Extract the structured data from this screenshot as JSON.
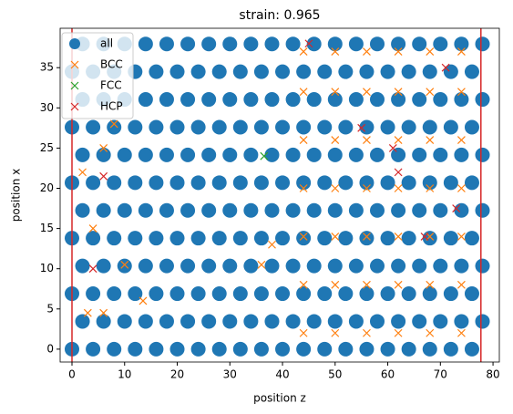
{
  "chart_data": {
    "type": "scatter",
    "title": "strain: 0.965",
    "xlabel": "position z",
    "ylabel": "position x",
    "xlim": [
      -2.25,
      81.2
    ],
    "ylim": [
      -1.6,
      39.9
    ],
    "xticks": [
      0,
      10,
      20,
      30,
      40,
      50,
      60,
      70,
      80
    ],
    "yticks": [
      0,
      5,
      10,
      15,
      20,
      25,
      30,
      35
    ],
    "legend": "upper left",
    "vlines": [
      0,
      77.7
    ],
    "vline_color": "#d62728",
    "series": [
      {
        "name": "all",
        "color": "#1f77b4",
        "marker": "o",
        "x": [
          0,
          4,
          8,
          12,
          16,
          20,
          24,
          28,
          32,
          36,
          40,
          44,
          48,
          52,
          56,
          60,
          64,
          68,
          72,
          76,
          2,
          6,
          10,
          14,
          18,
          22,
          26,
          30,
          34,
          38,
          42,
          46,
          50,
          54,
          58,
          62,
          66,
          70,
          74,
          78,
          0,
          4,
          8,
          12,
          16,
          20,
          24,
          28,
          32,
          36,
          40,
          44,
          48,
          52,
          56,
          60,
          64,
          68,
          72,
          76,
          2,
          6,
          10,
          14,
          18,
          22,
          26,
          30,
          34,
          38,
          42,
          46,
          50,
          54,
          58,
          62,
          66,
          70,
          74,
          78,
          0,
          4,
          8,
          12,
          16,
          20,
          24,
          28,
          32,
          36,
          40,
          44,
          48,
          52,
          56,
          60,
          64,
          68,
          72,
          76,
          2,
          6,
          10,
          14,
          18,
          22,
          26,
          30,
          34,
          38,
          42,
          46,
          50,
          54,
          58,
          62,
          66,
          70,
          74,
          78,
          0,
          4,
          8,
          12,
          16,
          20,
          24,
          28,
          32,
          36,
          40,
          44,
          48,
          52,
          56,
          60,
          64,
          68,
          72,
          76,
          2,
          6,
          10,
          14,
          18,
          22,
          26,
          30,
          34,
          38,
          42,
          46,
          50,
          54,
          58,
          62,
          66,
          70,
          74,
          78,
          0,
          4,
          8,
          12,
          16,
          20,
          24,
          28,
          32,
          36,
          40,
          44,
          48,
          52,
          56,
          60,
          64,
          68,
          72,
          76,
          2,
          6,
          10,
          14,
          18,
          22,
          26,
          30,
          34,
          38,
          42,
          46,
          50,
          54,
          58,
          62,
          66,
          70,
          74,
          78,
          0,
          4,
          8,
          12,
          16,
          20,
          24,
          28,
          32,
          36,
          40,
          44,
          48,
          52,
          56,
          60,
          64,
          68,
          72,
          76,
          2,
          6,
          10,
          14,
          18,
          22,
          26,
          30,
          34,
          38,
          42,
          46,
          50,
          54,
          58,
          62,
          66,
          70,
          74,
          78
        ],
        "values": [
          0,
          0,
          0,
          0,
          0,
          0,
          0,
          0,
          0,
          0,
          0,
          0,
          0,
          0,
          0,
          0,
          0,
          0,
          0,
          0,
          3.45,
          3.45,
          3.45,
          3.45,
          3.45,
          3.45,
          3.45,
          3.45,
          3.45,
          3.45,
          3.45,
          3.45,
          3.45,
          3.45,
          3.45,
          3.45,
          3.45,
          3.45,
          3.45,
          3.45,
          6.9,
          6.9,
          6.9,
          6.9,
          6.9,
          6.9,
          6.9,
          6.9,
          6.9,
          6.9,
          6.9,
          6.9,
          6.9,
          6.9,
          6.9,
          6.9,
          6.9,
          6.9,
          6.9,
          6.9,
          10.35,
          10.35,
          10.35,
          10.35,
          10.35,
          10.35,
          10.35,
          10.35,
          10.35,
          10.35,
          10.35,
          10.35,
          10.35,
          10.35,
          10.35,
          10.35,
          10.35,
          10.35,
          10.35,
          10.35,
          13.8,
          13.8,
          13.8,
          13.8,
          13.8,
          13.8,
          13.8,
          13.8,
          13.8,
          13.8,
          13.8,
          13.8,
          13.8,
          13.8,
          13.8,
          13.8,
          13.8,
          13.8,
          13.8,
          13.8,
          17.25,
          17.25,
          17.25,
          17.25,
          17.25,
          17.25,
          17.25,
          17.25,
          17.25,
          17.25,
          17.25,
          17.25,
          17.25,
          17.25,
          17.25,
          17.25,
          17.25,
          17.25,
          17.25,
          17.25,
          20.7,
          20.7,
          20.7,
          20.7,
          20.7,
          20.7,
          20.7,
          20.7,
          20.7,
          20.7,
          20.7,
          20.7,
          20.7,
          20.7,
          20.7,
          20.7,
          20.7,
          20.7,
          20.7,
          20.7,
          24.15,
          24.15,
          24.15,
          24.15,
          24.15,
          24.15,
          24.15,
          24.15,
          24.15,
          24.15,
          24.15,
          24.15,
          24.15,
          24.15,
          24.15,
          24.15,
          24.15,
          24.15,
          24.15,
          24.15,
          27.6,
          27.6,
          27.6,
          27.6,
          27.6,
          27.6,
          27.6,
          27.6,
          27.6,
          27.6,
          27.6,
          27.6,
          27.6,
          27.6,
          27.6,
          27.6,
          27.6,
          27.6,
          27.6,
          27.6,
          31.05,
          31.05,
          31.05,
          31.05,
          31.05,
          31.05,
          31.05,
          31.05,
          31.05,
          31.05,
          31.05,
          31.05,
          31.05,
          31.05,
          31.05,
          31.05,
          31.05,
          31.05,
          31.05,
          31.05,
          34.5,
          34.5,
          34.5,
          34.5,
          34.5,
          34.5,
          34.5,
          34.5,
          34.5,
          34.5,
          34.5,
          34.5,
          34.5,
          34.5,
          34.5,
          34.5,
          34.5,
          34.5,
          34.5,
          34.5,
          37.95,
          37.95,
          37.95,
          37.95,
          37.95,
          37.95,
          37.95,
          37.95,
          37.95,
          37.95,
          37.95,
          37.95,
          37.95,
          37.95,
          37.95,
          37.95,
          37.95,
          37.95,
          37.95,
          37.95
        ]
      },
      {
        "name": "BCC",
        "color": "#ff7f0e",
        "marker": "x",
        "x": [
          44,
          50,
          56,
          62,
          68,
          74,
          44,
          50,
          56,
          62,
          68,
          74,
          44,
          50,
          56,
          62,
          68,
          74,
          44,
          50,
          56,
          62,
          68,
          74,
          44,
          50,
          56,
          62,
          68,
          74,
          44,
          50,
          56,
          62,
          68,
          74,
          44,
          50,
          56,
          62,
          68,
          74,
          2,
          4,
          6,
          10,
          13.5,
          8,
          36,
          38,
          3,
          6
        ],
        "values": [
          2,
          2,
          2,
          2,
          2,
          2,
          8,
          8,
          8,
          8,
          8,
          8,
          14,
          14,
          14,
          14,
          14,
          14,
          20,
          20,
          20,
          20,
          20,
          20,
          26,
          26,
          26,
          26,
          26,
          26,
          32,
          32,
          32,
          32,
          32,
          32,
          37,
          37,
          37,
          37,
          37,
          37,
          22,
          15,
          25,
          10.5,
          6,
          28,
          10.5,
          13,
          4.5,
          4.5
        ]
      },
      {
        "name": "FCC",
        "color": "#2ca02c",
        "marker": "x",
        "x": [
          36.5
        ],
        "values": [
          24
        ]
      },
      {
        "name": "HCP",
        "color": "#d62728",
        "marker": "x",
        "x": [
          4,
          6,
          45,
          55,
          61,
          62,
          67,
          71,
          73
        ],
        "values": [
          10,
          21.5,
          38,
          27.5,
          25,
          22,
          14,
          35,
          17.5
        ]
      }
    ]
  }
}
